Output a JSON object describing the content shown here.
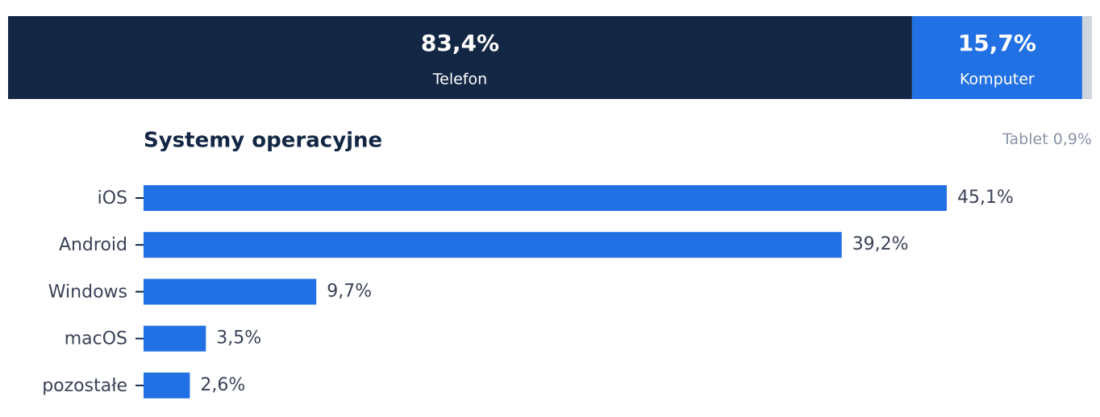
{
  "chart_data": [
    {
      "type": "stacked-bar",
      "series": [
        {
          "name": "Telefon",
          "color": "#132744",
          "values": [
            83.4
          ],
          "value_labels": [
            "83,4%"
          ]
        },
        {
          "name": "Komputer",
          "color": "#2170e4",
          "values": [
            15.7
          ],
          "value_labels": [
            "15,7%"
          ]
        },
        {
          "name": "Tablet",
          "color": "#cfd5de",
          "values": [
            0.9
          ],
          "value_labels": [
            "0,9%"
          ]
        }
      ]
    },
    {
      "type": "bar",
      "title": "Systemy operacyjne",
      "categories": [
        "iOS",
        "Android",
        "Windows",
        "macOS",
        "pozostałe"
      ],
      "values": [
        45.1,
        39.2,
        9.7,
        3.5,
        2.6
      ],
      "value_labels": [
        "45,1%",
        "39,2%",
        "9,7%",
        "3,5%",
        "2,6%"
      ],
      "color": "#2170e4"
    }
  ]
}
